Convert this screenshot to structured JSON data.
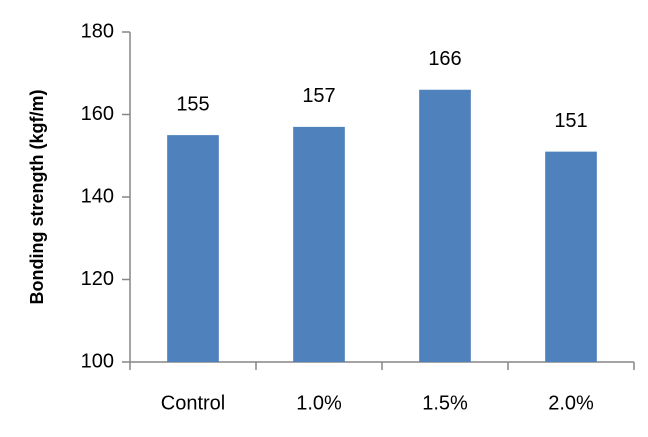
{
  "chart_data": {
    "type": "bar",
    "y_axis_label": "Bonding strength (kgf/m)",
    "categories": [
      "Control",
      "1.0%",
      "1.5%",
      "2.0%"
    ],
    "values": [
      155,
      157,
      166,
      151
    ],
    "color": "#4f81bd",
    "ylim": [
      100,
      180
    ],
    "yticks": [
      100,
      120,
      140,
      160,
      180
    ],
    "grid": false
  }
}
